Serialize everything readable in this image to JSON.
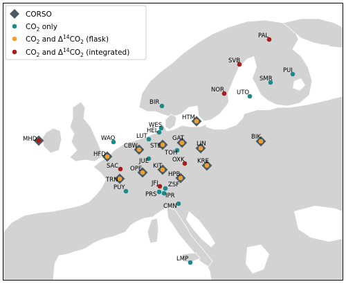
{
  "colors": {
    "land": "#d3d3d3",
    "sea": "#ffffff",
    "corso": "#4a5a63",
    "co2_only": "#1a8a8a",
    "flask": "#f0a030",
    "integrated": "#a81c1c"
  },
  "legend": {
    "items": [
      {
        "marker": "diamond",
        "label": "CORSO"
      },
      {
        "marker": "co2_only",
        "label": "CO2 only"
      },
      {
        "marker": "flask",
        "label": "CO2 and Δ14CO2 (flask)"
      },
      {
        "marker": "integrated",
        "label": "CO2 and Δ14CO2 (integrated)"
      }
    ]
  },
  "stations": [
    {
      "code": "PAL",
      "type": "integrated",
      "corso": false
    },
    {
      "code": "SVB",
      "type": "integrated",
      "corso": false
    },
    {
      "code": "PUI",
      "type": "co2_only",
      "corso": false
    },
    {
      "code": "SMR",
      "type": "co2_only",
      "corso": false
    },
    {
      "code": "NOR",
      "type": "integrated",
      "corso": false
    },
    {
      "code": "UTO",
      "type": "co2_only",
      "corso": false
    },
    {
      "code": "BIR",
      "type": "co2_only",
      "corso": false
    },
    {
      "code": "HTM",
      "type": "flask",
      "corso": true
    },
    {
      "code": "MHD",
      "type": "integrated",
      "corso": true
    },
    {
      "code": "WES",
      "type": "co2_only",
      "corso": false
    },
    {
      "code": "HEL",
      "type": "co2_only",
      "corso": false
    },
    {
      "code": "LUT",
      "type": "co2_only",
      "corso": false
    },
    {
      "code": "WAO",
      "type": "co2_only",
      "corso": false
    },
    {
      "code": "CBW",
      "type": "flask",
      "corso": true
    },
    {
      "code": "STE",
      "type": "flask",
      "corso": true
    },
    {
      "code": "GAT",
      "type": "flask",
      "corso": true
    },
    {
      "code": "BIK",
      "type": "flask",
      "corso": true
    },
    {
      "code": "HFD",
      "type": "flask",
      "corso": true
    },
    {
      "code": "TOH",
      "type": "co2_only",
      "corso": false
    },
    {
      "code": "LIN",
      "type": "flask",
      "corso": true
    },
    {
      "code": "JUE",
      "type": "co2_only",
      "corso": false
    },
    {
      "code": "OXK",
      "type": "integrated",
      "corso": false
    },
    {
      "code": "KIT",
      "type": "flask",
      "corso": true
    },
    {
      "code": "KRE",
      "type": "flask",
      "corso": true
    },
    {
      "code": "SAC",
      "type": "integrated",
      "corso": false
    },
    {
      "code": "OPE",
      "type": "flask",
      "corso": true
    },
    {
      "code": "HPB",
      "type": "flask",
      "corso": true
    },
    {
      "code": "TRN",
      "type": "flask",
      "corso": true
    },
    {
      "code": "JFJ",
      "type": "integrated",
      "corso": false
    },
    {
      "code": "ZSF",
      "type": "co2_only",
      "corso": false
    },
    {
      "code": "PUY",
      "type": "co2_only",
      "corso": false
    },
    {
      "code": "PRS",
      "type": "co2_only",
      "corso": false
    },
    {
      "code": "IPR",
      "type": "co2_only",
      "corso": false
    },
    {
      "code": "CMN",
      "type": "co2_only",
      "corso": false
    },
    {
      "code": "LMP",
      "type": "co2_only",
      "corso": false
    }
  ]
}
